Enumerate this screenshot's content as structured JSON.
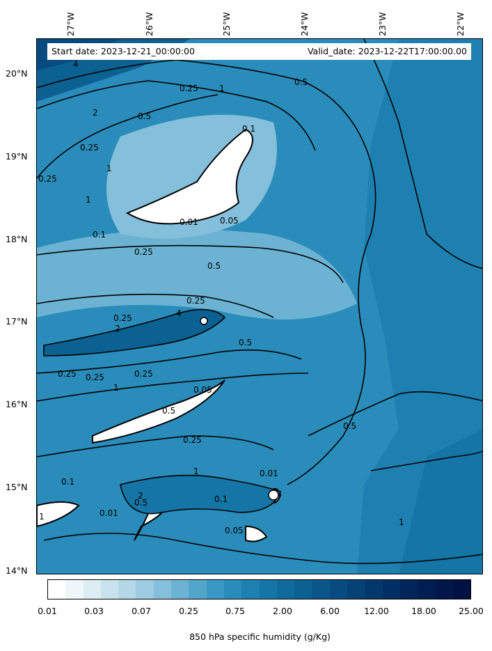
{
  "map": {
    "info": {
      "start": "Start date: 2023-12-21_00:00:00",
      "valid": "Valid_date: 2023-12-22T17:00:00.00"
    },
    "lat_labels": [
      "20°N",
      "19°N",
      "18°N",
      "17°N",
      "16°N",
      "15°N",
      "14°N"
    ],
    "lon_labels": [
      "27°W",
      "26°W",
      "25°W",
      "24°W",
      "23°W",
      "22°W"
    ],
    "contour_labels": [
      "4",
      "0.5",
      "0.25",
      "1",
      "2",
      "0.1",
      "0.5",
      "0.25",
      "1",
      "1",
      "0.01",
      "0.25",
      "0.05",
      "0.1",
      "0.25",
      "0.5",
      "0.25",
      "0.25",
      "2",
      "4",
      "0.5",
      "0.25",
      "0.25",
      "0.25",
      "1",
      "0.05",
      "0.5",
      "0.25",
      "0.1",
      "0.01",
      "0.5",
      "2",
      "1",
      "1",
      "0.5",
      "0.01",
      "1",
      "0.1",
      "0.05"
    ]
  },
  "colorbar": {
    "colors": [
      "#ffffff",
      "#eef6f9",
      "#dcedf4",
      "#c9e3ee",
      "#b4d8e8",
      "#9ccce2",
      "#84bfdb",
      "#6cb3d3",
      "#52a6cc",
      "#3a99c4",
      "#2a8cba",
      "#1e80b1",
      "#1575a7",
      "#106b9c",
      "#0c6193",
      "#0a5689",
      "#074b80",
      "#054276",
      "#03386c",
      "#022f63",
      "#01265a",
      "#011e52",
      "#01174a",
      "#001143"
    ],
    "ticks": [
      "0.01",
      "0.03",
      "0.07",
      "0.25",
      "0.75",
      "2.00",
      "6.00",
      "12.00",
      "18.00",
      "25.00"
    ],
    "label": "850 hPa specific humidity (g/Kg)"
  }
}
